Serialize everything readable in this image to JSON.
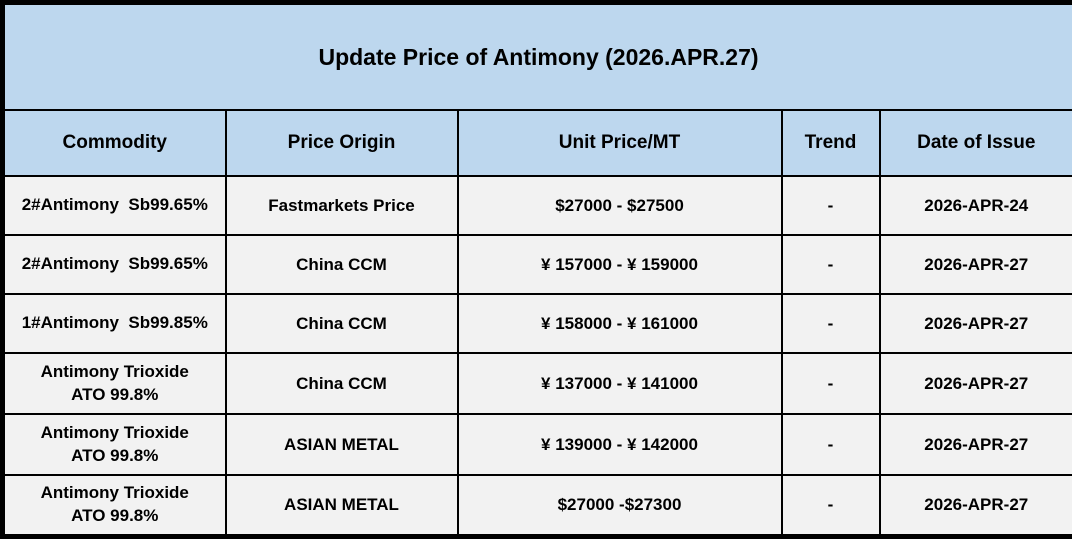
{
  "title": "Update Price of Antimony (2026.APR.27)",
  "colors": {
    "header_bg": "#BDD7EE",
    "row_bg": "#F2F2F2",
    "border": "#000000",
    "text": "#000000"
  },
  "table": {
    "headers": [
      "Commodity",
      "Price Origin",
      "Unit Price/MT",
      "Trend",
      "Date of Issue"
    ],
    "rows": [
      {
        "commodity": "2#Antimony  Sb99.65%",
        "origin": "Fastmarkets Price",
        "price": "$27000 - $27500",
        "trend": "-",
        "date": "2026-APR-24"
      },
      {
        "commodity": "2#Antimony  Sb99.65%",
        "origin": "China CCM",
        "price": "¥ 157000 - ¥ 159000",
        "trend": "-",
        "date": "2026-APR-27"
      },
      {
        "commodity": "1#Antimony  Sb99.85%",
        "origin": "China CCM",
        "price": "¥ 158000 - ¥ 161000",
        "trend": "-",
        "date": "2026-APR-27"
      },
      {
        "commodity": "Antimony Trioxide\nATO 99.8%",
        "origin": "China CCM",
        "price": "¥ 137000 - ¥ 141000",
        "trend": "-",
        "date": "2026-APR-27"
      },
      {
        "commodity": "Antimony Trioxide\nATO 99.8%",
        "origin": "ASIAN METAL",
        "price": "¥ 139000 - ¥ 142000",
        "trend": "-",
        "date": "2026-APR-27"
      },
      {
        "commodity": "Antimony Trioxide\nATO 99.8%",
        "origin": "ASIAN METAL",
        "price": "$27000 -$27300",
        "trend": "-",
        "date": "2026-APR-27"
      }
    ]
  }
}
